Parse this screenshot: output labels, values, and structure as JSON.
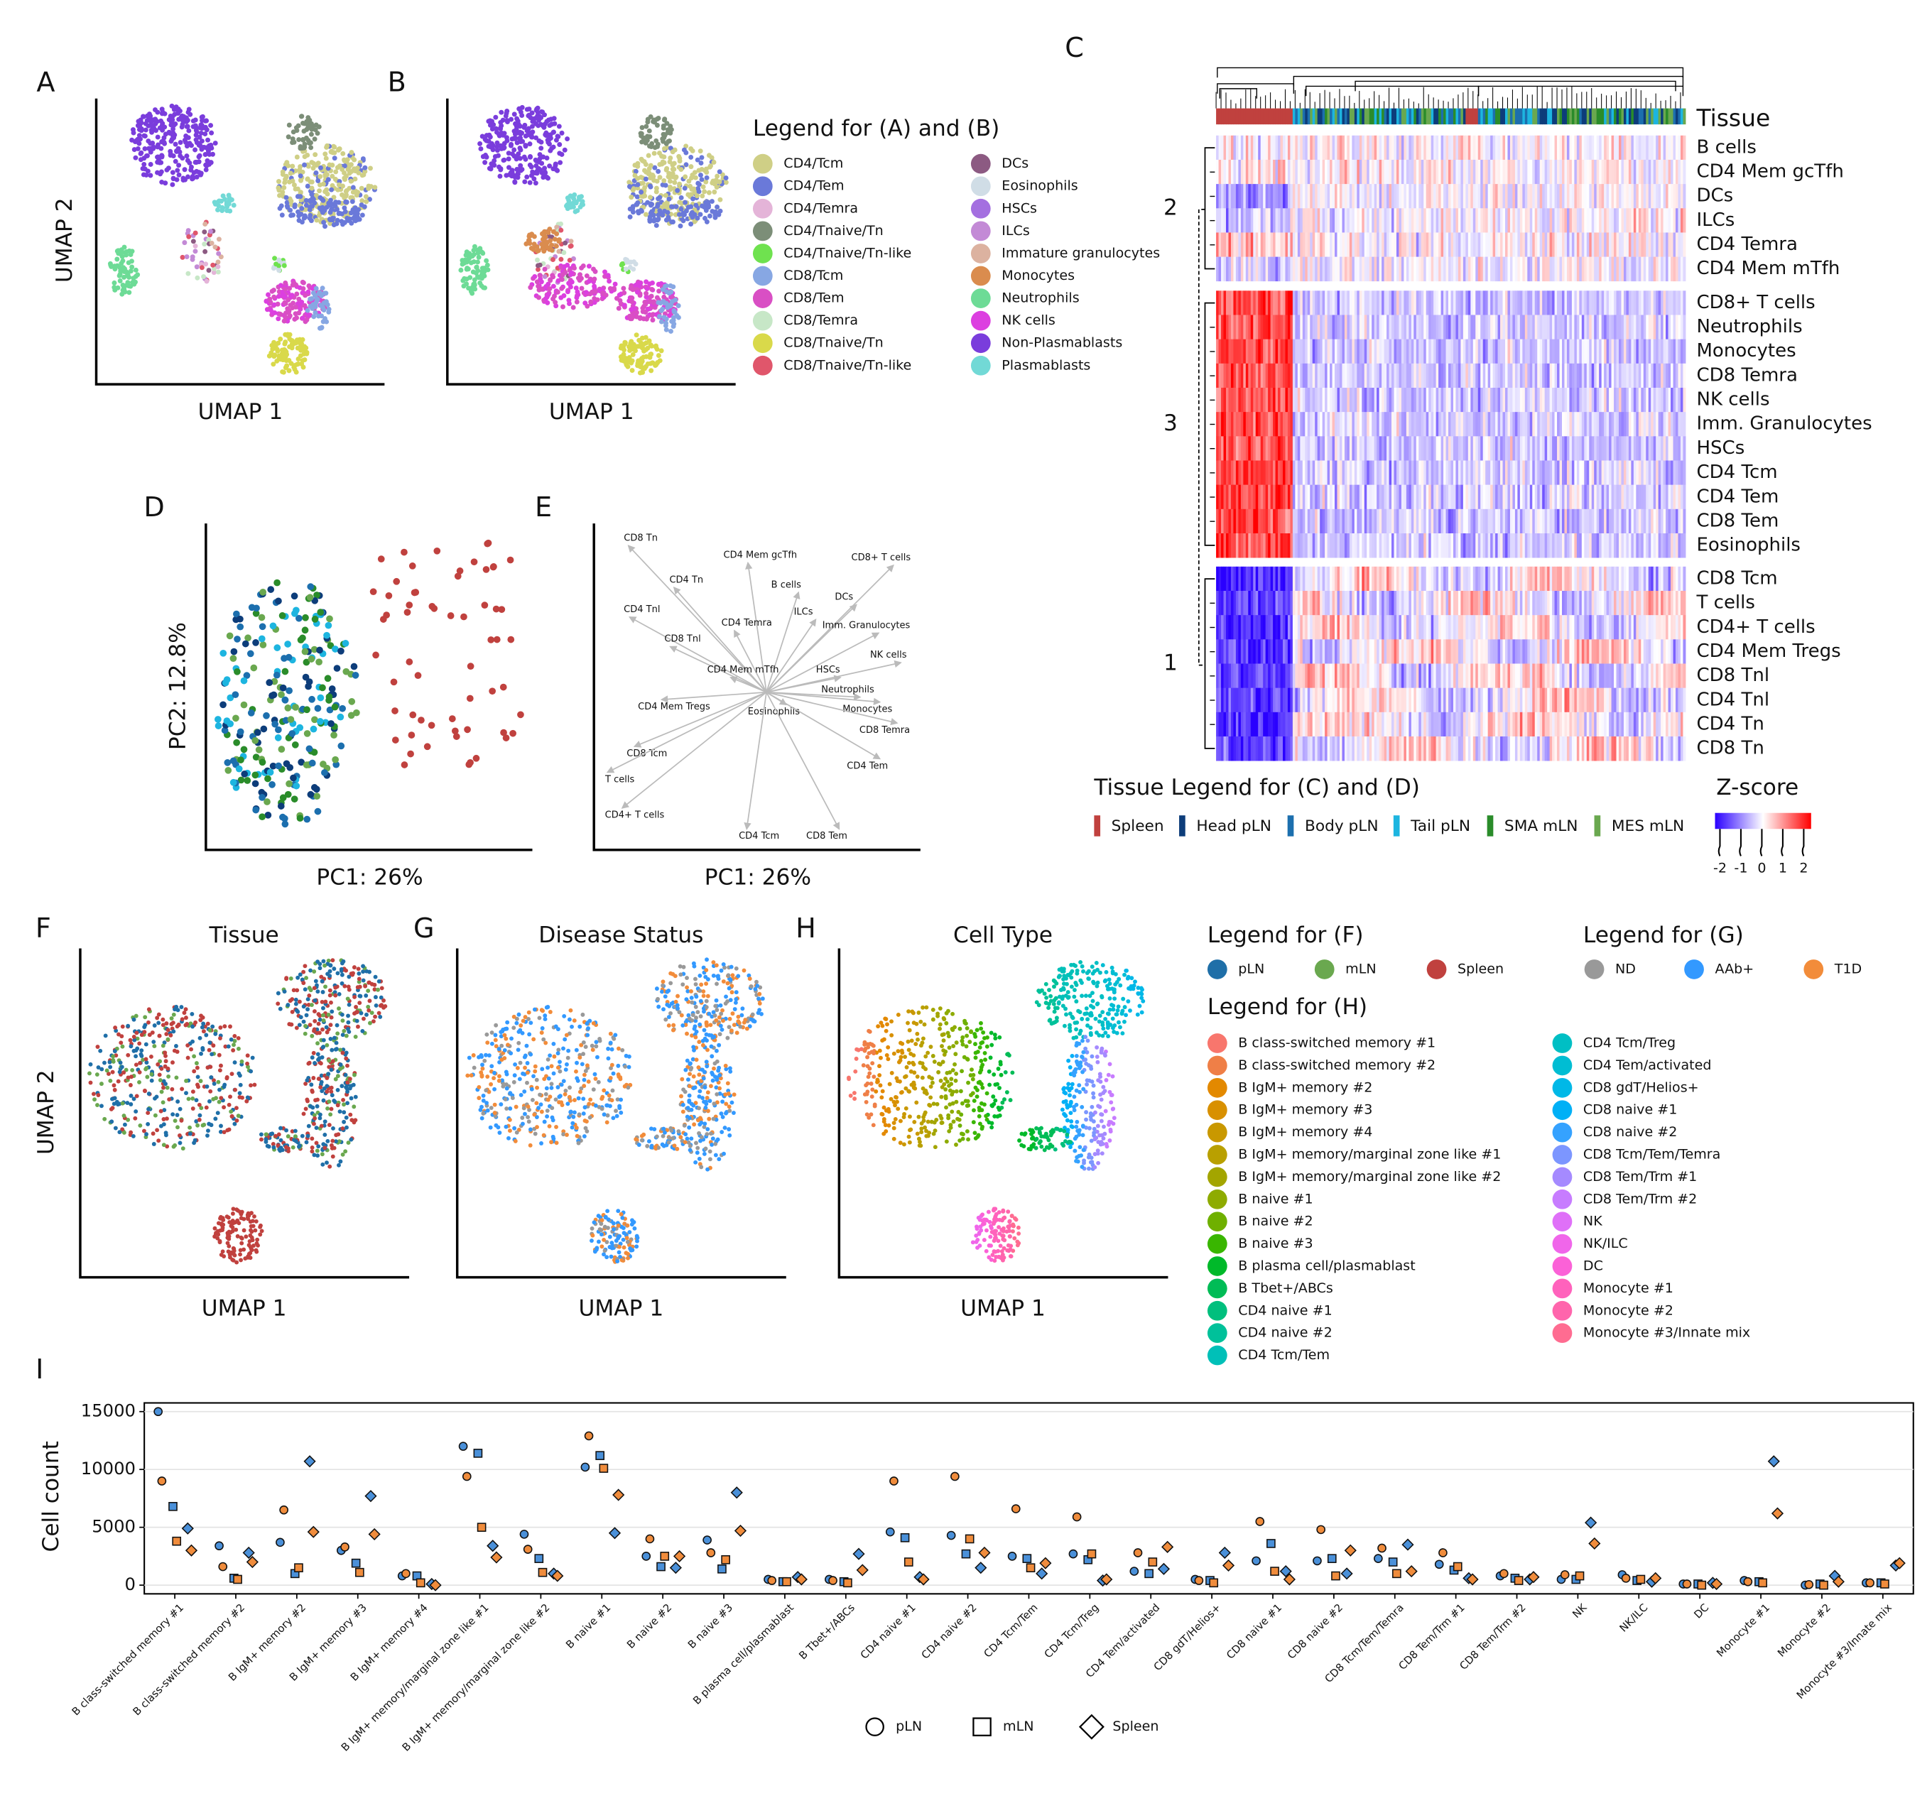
{
  "panel_labels": [
    "A",
    "B",
    "C",
    "D",
    "E",
    "F",
    "G",
    "H",
    "I"
  ],
  "umap_ab": {
    "x_label": "UMAP 1",
    "y_label": "UMAP 2",
    "legend_title": "Legend for (A) and (B)",
    "legend": [
      {
        "label": "CD4/Tcm",
        "color": "#cfcf86"
      },
      {
        "label": "CD4/Tem",
        "color": "#6a79d9"
      },
      {
        "label": "CD4/Temra",
        "color": "#e4b4d8"
      },
      {
        "label": "CD4/Tnaive/Tn",
        "color": "#7c8e78"
      },
      {
        "label": "CD4/Tnaive/Tn-like",
        "color": "#6fe24f"
      },
      {
        "label": "CD8/Tcm",
        "color": "#87a7e3"
      },
      {
        "label": "CD8/Tem",
        "color": "#d94fc4"
      },
      {
        "label": "CD8/Temra",
        "color": "#c7e7c7"
      },
      {
        "label": "CD8/Tnaive/Tn",
        "color": "#d9d94a"
      },
      {
        "label": "CD8/Tnaive/Tn-like",
        "color": "#e0566b"
      },
      {
        "label": "DCs",
        "color": "#8c5a82"
      },
      {
        "label": "Eosinophils",
        "color": "#d0dde6"
      },
      {
        "label": "HSCs",
        "color": "#a46fe0"
      },
      {
        "label": "ILCs",
        "color": "#c38ad6"
      },
      {
        "label": "Immature granulocytes",
        "color": "#dcb2a0"
      },
      {
        "label": "Monocytes",
        "color": "#da8c4e"
      },
      {
        "label": "Neutrophils",
        "color": "#6ddb96"
      },
      {
        "label": "NK cells",
        "color": "#dc3fe0"
      },
      {
        "label": "Non-Plasmablasts",
        "color": "#7a3ddc"
      },
      {
        "label": "Plasmablasts",
        "color": "#72d9d6"
      }
    ]
  },
  "heatmap": {
    "tissue_label": "Tissue",
    "clusters": [
      "2",
      "3",
      "1"
    ],
    "rows": [
      [
        "B cells",
        "CD4 Mem gcTfh",
        "DCs",
        "ILCs",
        "CD4 Temra",
        "CD4 Mem mTfh"
      ],
      [
        "CD8+ T cells",
        "Neutrophils",
        "Monocytes",
        "CD8 Temra",
        "NK cells",
        "Imm. Granulocytes",
        "HSCs",
        "CD4 Tcm",
        "CD4 Tem",
        "CD8 Tem",
        "Eosinophils"
      ],
      [
        "CD8 Tcm",
        "T cells",
        "CD4+ T cells",
        "CD4 Mem Tregs",
        "CD8 Tnl",
        "CD4 Tnl",
        "CD4 Tn",
        "CD8 Tn"
      ]
    ],
    "tissue_legend_title": "Tissue Legend for (C) and (D)",
    "tissue_legend": [
      {
        "label": "Spleen",
        "color": "#c0413e"
      },
      {
        "label": "Head pLN",
        "color": "#0d3d7a"
      },
      {
        "label": "Body pLN",
        "color": "#1c6fae"
      },
      {
        "label": "Tail pLN",
        "color": "#1db5e0"
      },
      {
        "label": "SMA mLN",
        "color": "#2a8c2a"
      },
      {
        "label": "MES mLN",
        "color": "#6aa84f"
      }
    ],
    "zscore_title": "Z-score",
    "zscore_ticks": [
      -2,
      -1,
      0,
      1,
      2
    ],
    "zscore_colors": [
      "#2a00ff",
      "#ffffff",
      "#ff0000"
    ]
  },
  "pca": {
    "x_label": "PC1: 26%",
    "y_label": "PC2: 12.8%"
  },
  "biplot": {
    "x_label": "PC1: 26%",
    "labels": [
      "CD8 Tn",
      "CD4 Mem gcTfh",
      "CD8+ T cells",
      "CD4 Tn",
      "B cells",
      "DCs",
      "CD4 Tnl",
      "ILCs",
      "CD4 Temra",
      "Imm. Granulocytes",
      "CD8 Tnl",
      "NK cells",
      "CD4 Mem mTfh",
      "HSCs",
      "Neutrophils",
      "CD4 Mem Tregs",
      "Eosinophils",
      "Monocytes",
      "CD8 Temra",
      "CD8 Tcm",
      "CD4 Tem",
      "T cells",
      "CD4+ T cells",
      "CD4 Tcm",
      "CD8 Tem"
    ]
  },
  "umap_fgh": {
    "titles": [
      "Tissue",
      "Disease Status",
      "Cell Type"
    ],
    "x_label": "UMAP 1",
    "y_label": "UMAP 2",
    "legend_f_title": "Legend for (F)",
    "legend_f": [
      {
        "label": "pLN",
        "color": "#1f6fa8"
      },
      {
        "label": "mLN",
        "color": "#6aa84f"
      },
      {
        "label": "Spleen",
        "color": "#c0413e"
      }
    ],
    "legend_g_title": "Legend for (G)",
    "legend_g": [
      {
        "label": "ND",
        "color": "#999999"
      },
      {
        "label": "AAb+",
        "color": "#3399ff"
      },
      {
        "label": "T1D",
        "color": "#f28c3a"
      }
    ],
    "legend_h_title": "Legend for (H)",
    "legend_h": [
      {
        "label": "B class-switched memory #1",
        "color": "#F8766D"
      },
      {
        "label": "B class-switched memory #2",
        "color": "#EF7F47"
      },
      {
        "label": "B IgM+ memory #2",
        "color": "#E38900"
      },
      {
        "label": "B IgM+ memory #3",
        "color": "#D89000"
      },
      {
        "label": "B IgM+ memory #4",
        "color": "#C99800"
      },
      {
        "label": "B IgM+ memory/marginal zone like #1",
        "color": "#B9A000"
      },
      {
        "label": "B IgM+ memory/marginal zone like #2",
        "color": "#A3A500"
      },
      {
        "label": "B naive #1",
        "color": "#8EAB00"
      },
      {
        "label": "B naive #2",
        "color": "#6FB000"
      },
      {
        "label": "B naive #3",
        "color": "#39B600"
      },
      {
        "label": "B plasma cell/plasmablast",
        "color": "#00B92A"
      },
      {
        "label": "B Tbet+/ABCs",
        "color": "#00BC56"
      },
      {
        "label": "CD4 naive #1",
        "color": "#00BF7D"
      },
      {
        "label": "CD4 naive #2",
        "color": "#00C19A"
      },
      {
        "label": "CD4 Tcm/Tem",
        "color": "#00C0B8"
      },
      {
        "label": "CD4 Tcm/Treg",
        "color": "#00BFC4"
      },
      {
        "label": "CD4 Tem/activated",
        "color": "#00BDD3"
      },
      {
        "label": "CD8 gdT/Helios+",
        "color": "#00B8E7"
      },
      {
        "label": "CD8 naive #1",
        "color": "#00B0F6"
      },
      {
        "label": "CD8 naive #2",
        "color": "#35A2FF"
      },
      {
        "label": "CD8 Tcm/Tem/Temra",
        "color": "#7C96FF"
      },
      {
        "label": "CD8 Tem/Trm #1",
        "color": "#A58AFF"
      },
      {
        "label": "CD8 Tem/Trm #2",
        "color": "#C77CFF"
      },
      {
        "label": "NK",
        "color": "#DF70F8"
      },
      {
        "label": "NK/ILC",
        "color": "#F066EA"
      },
      {
        "label": "DC",
        "color": "#FB61D7"
      },
      {
        "label": "Monocyte #1",
        "color": "#FF62BC"
      },
      {
        "label": "Monocyte #2",
        "color": "#FF65AC"
      },
      {
        "label": "Monocyte #3/Innate mix",
        "color": "#FF6C91"
      }
    ]
  },
  "chart_data": {
    "type": "strip",
    "y_label": "Cell count",
    "categories": [
      "B class-switched memory #1",
      "B class-switched memory #2",
      "B IgM+ memory #2",
      "B IgM+ memory #3",
      "B IgM+ memory #4",
      "B IgM+ memory/marginal zone like #1",
      "B IgM+ memory/marginal zone like #2",
      "B naive #1",
      "B naive #2",
      "B naive #3",
      "B plasma cell/plasmablast",
      "B Tbet+/ABCs",
      "CD4 naive #1",
      "CD4 naive #2",
      "CD4 Tcm/Tem",
      "CD4 Tcm/Treg",
      "CD4 Tem/activated",
      "CD8 gdT/Helios+",
      "CD8 naive #1",
      "CD8 naive #2",
      "CD8 Tcm/Tem/Temra",
      "CD8 Tem/Trm #1",
      "CD8 Tem/Trm #2",
      "NK",
      "NK/ILC",
      "DC",
      "Monocyte #1",
      "Monocyte #2",
      "Monocyte #3/Innate mix"
    ],
    "shapes": [
      {
        "label": "pLN",
        "shape": "circle"
      },
      {
        "label": "mLN",
        "shape": "square"
      },
      {
        "label": "Spleen",
        "shape": "diamond"
      }
    ],
    "series": [
      {
        "tissue": "pLN",
        "color": "#4a90d9",
        "values": [
          15000,
          3400,
          3700,
          3000,
          800,
          12000,
          4400,
          10200,
          2500,
          3900,
          500,
          500,
          4600,
          4300,
          2500,
          2700,
          1200,
          500,
          2100,
          2100,
          2300,
          1800,
          800,
          500,
          900,
          100,
          400,
          0,
          200
        ]
      },
      {
        "tissue": "pLN",
        "color": "#f08c3c",
        "values": [
          9000,
          1600,
          6500,
          3300,
          1000,
          9400,
          3100,
          12900,
          4000,
          2800,
          400,
          400,
          9000,
          9400,
          6600,
          5900,
          2800,
          400,
          5500,
          4800,
          3200,
          2800,
          1000,
          900,
          600,
          100,
          300,
          50,
          200
        ]
      },
      {
        "tissue": "mLN",
        "color": "#4a90d9",
        "values": [
          6800,
          600,
          1000,
          1900,
          800,
          11400,
          2300,
          11200,
          1600,
          1400,
          300,
          300,
          4100,
          2700,
          2300,
          2200,
          1000,
          400,
          3600,
          2300,
          2000,
          1300,
          600,
          500,
          400,
          100,
          300,
          100,
          200
        ]
      },
      {
        "tissue": "mLN",
        "color": "#f08c3c",
        "values": [
          3800,
          500,
          1500,
          1100,
          200,
          5000,
          1100,
          10100,
          2500,
          2200,
          300,
          200,
          2000,
          4000,
          1500,
          2700,
          2000,
          200,
          1200,
          800,
          1000,
          1600,
          400,
          800,
          500,
          0,
          200,
          0,
          100
        ]
      },
      {
        "tissue": "Spleen",
        "color": "#4a90d9",
        "values": [
          4900,
          2800,
          10700,
          7700,
          100,
          3400,
          1000,
          4500,
          1500,
          8000,
          700,
          2700,
          700,
          1500,
          1000,
          400,
          1400,
          2800,
          1200,
          1000,
          3500,
          600,
          500,
          5400,
          300,
          200,
          10700,
          800,
          1700
        ]
      },
      {
        "tissue": "Spleen",
        "color": "#f08c3c",
        "values": [
          3000,
          2000,
          4600,
          4400,
          0,
          2400,
          800,
          7800,
          2500,
          4700,
          500,
          1300,
          500,
          2800,
          1900,
          500,
          3300,
          1700,
          500,
          3000,
          1200,
          500,
          700,
          3600,
          600,
          100,
          6200,
          300,
          1900
        ]
      }
    ],
    "ylim": [
      -750,
      15750
    ],
    "yticks": [
      0,
      5000,
      10000,
      15000
    ],
    "grid": true
  }
}
